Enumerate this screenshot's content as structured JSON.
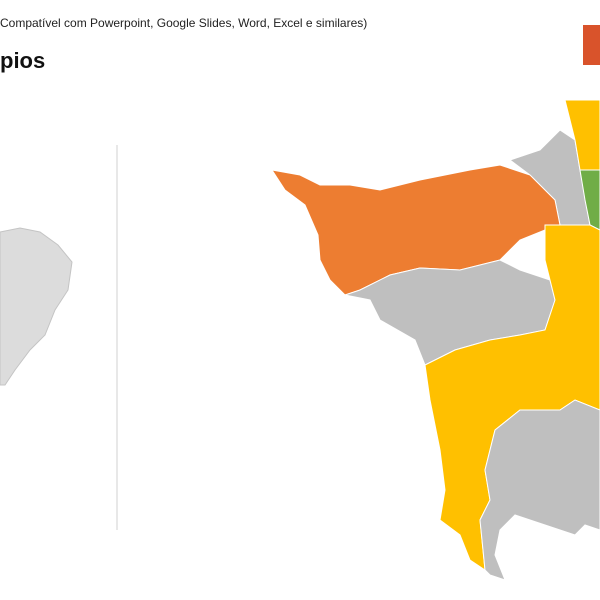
{
  "header": {
    "subtitle": "Compatível com Powerpoint, Google Slides, Word, Excel e similares)",
    "title": "pios"
  }
}
